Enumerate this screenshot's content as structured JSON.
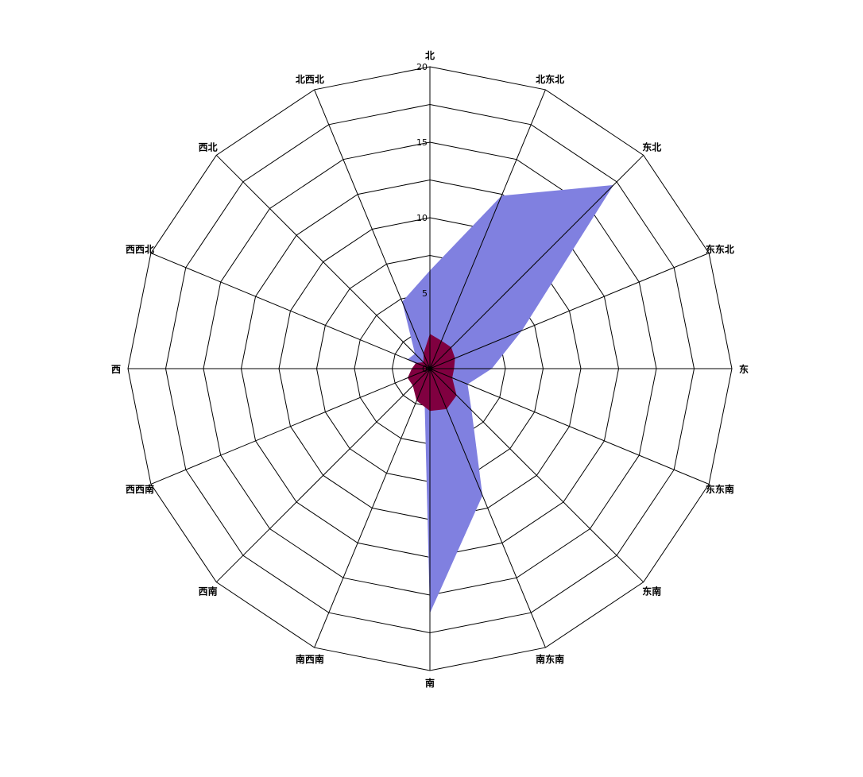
{
  "chart_data": {
    "type": "radar",
    "directions": [
      "北",
      "北东北",
      "东北",
      "东东北",
      "东",
      "东东南",
      "东南",
      "南东南",
      "南",
      "南西南",
      "西南",
      "西西南",
      "西",
      "西西北",
      "西北",
      "北西北"
    ],
    "highlighted_direction": "东北",
    "radial_ticks": [
      "0",
      "5",
      "10",
      "15",
      "20"
    ],
    "rmax": 20,
    "grid": true,
    "series": [
      {
        "color": "#8080e0",
        "values": [
          6.5,
          12.4,
          17.2,
          6.6,
          4.1,
          2.7,
          3.9,
          9.1,
          16.2,
          1.0,
          1.0,
          0.4,
          0.3,
          1.6,
          1.4,
          4.8
        ]
      },
      {
        "color": "#800040",
        "values": [
          2.3,
          2.0,
          2.0,
          1.8,
          1.6,
          1.6,
          2.5,
          2.9,
          2.8,
          2.3,
          1.6,
          1.6,
          1.2,
          1.0,
          0.6,
          1.1
        ]
      }
    ],
    "colors": {
      "highlight_label": "#008000",
      "text": "#000000",
      "grid": "#000000"
    }
  }
}
